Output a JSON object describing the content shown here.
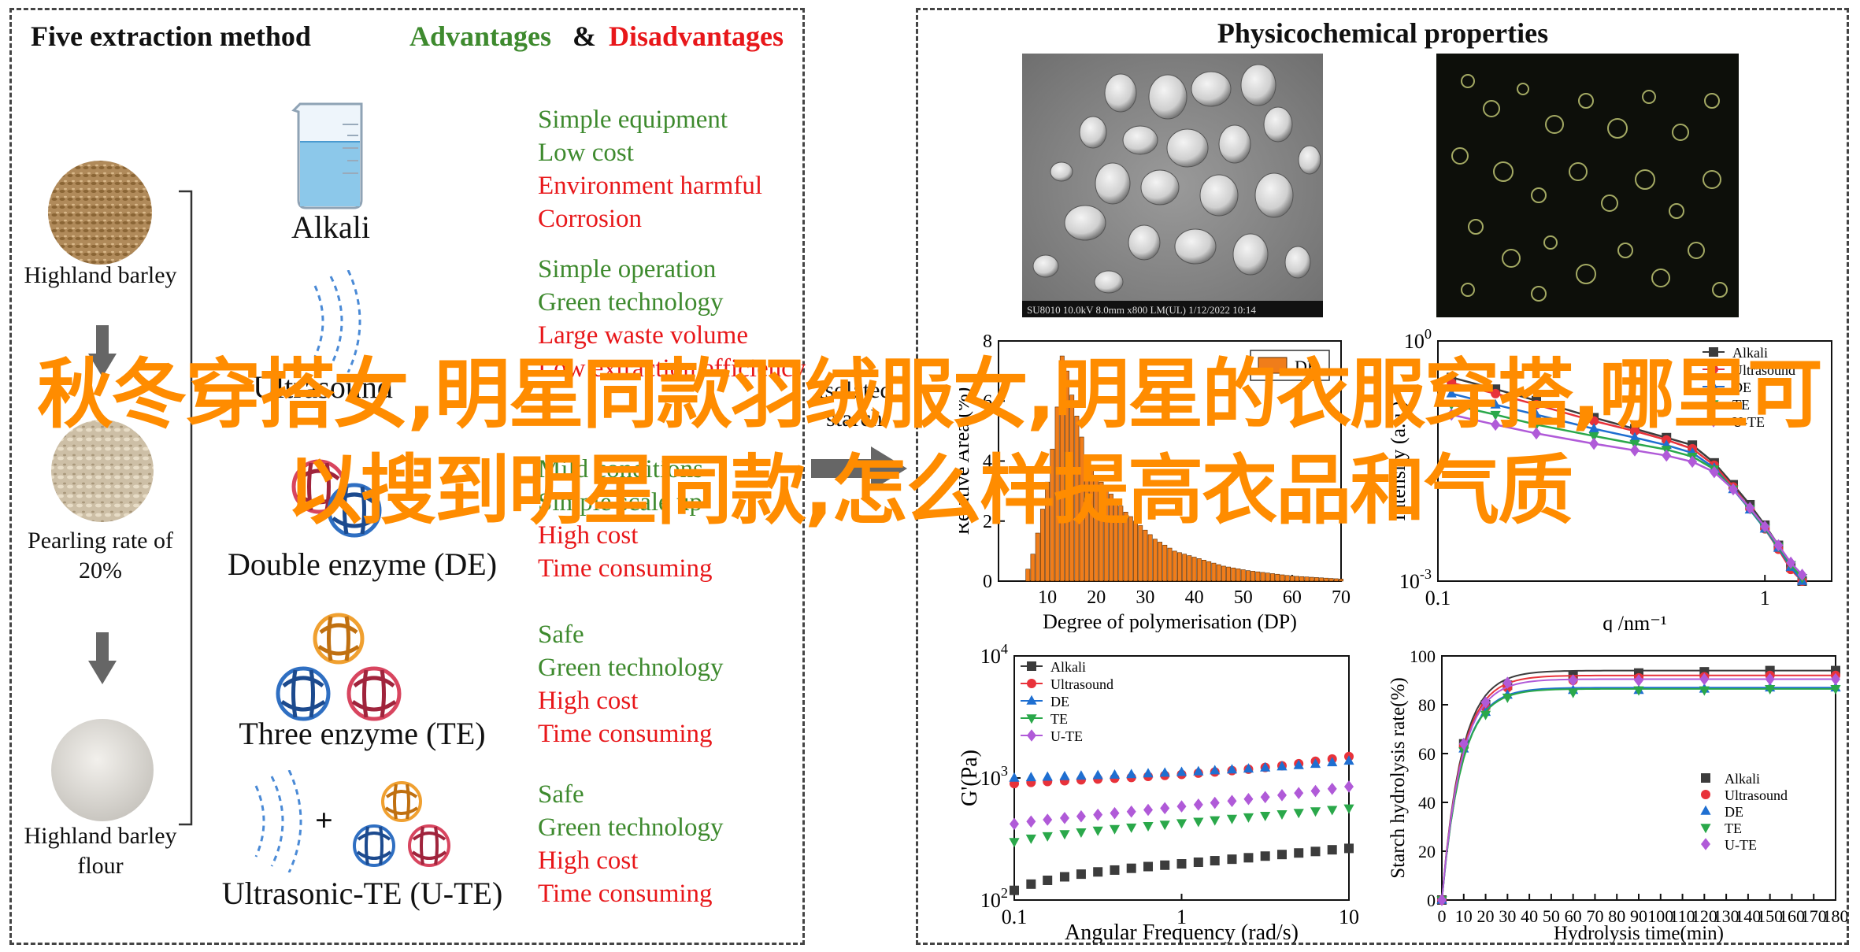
{
  "left": {
    "title": "Five extraction method",
    "advantages_label": "Advantages",
    "amp": "&",
    "disadvantages_label": "Disadvantages",
    "colors": {
      "advantage": "#3e8a2e",
      "disadvantage": "#e8171a"
    },
    "samples": [
      "Highland barley",
      "Pearling rate of 20%",
      "Highland barley flour"
    ],
    "methods": [
      {
        "name": "Alkali",
        "advantages": [
          "Simple equipment",
          "Low cost"
        ],
        "disadvantages": [
          "Environment harmful",
          "Corrosion"
        ]
      },
      {
        "name": "Ultrasound",
        "advantages": [
          "Simple operation",
          "Green technology"
        ],
        "disadvantages": [
          "Large waste volume",
          "Low extraction efficiency"
        ]
      },
      {
        "name": "Double enzyme (DE)",
        "advantages": [
          "Mild conditions",
          "Simple scale up"
        ],
        "disadvantages": [
          "High cost",
          "Time consuming"
        ]
      },
      {
        "name": "Three enzyme (TE)",
        "advantages": [
          "Safe",
          "Green technology"
        ],
        "disadvantages": [
          "High cost",
          "Time consuming"
        ]
      },
      {
        "name": "Ultrasonic-TE (U-TE)",
        "advantages": [
          "Safe",
          "Green technology"
        ],
        "disadvantages": [
          "High cost",
          "Time consuming"
        ]
      }
    ],
    "plus": "+",
    "isolated_label": "Isolated starch"
  },
  "right": {
    "title": "Physicochemical properties",
    "sem_caption": "SU8010 10.0kV 8.0mm x800 LM(UL) 1/12/2022 10:14"
  },
  "overlay": "秋冬穿搭女,明星同款羽绒服女,明星的衣服穿搭,哪里可以搜到明星同款,怎么样提高衣品和气质",
  "chart_data": [
    {
      "type": "bar",
      "legend": [
        "DE"
      ],
      "legend_position": "top-right",
      "color": "#f07d1a",
      "xlabel": "Degree of polymerisation (DP)",
      "ylabel": "Relative Area (%)",
      "xticks": [
        10,
        20,
        30,
        40,
        50,
        60,
        70
      ],
      "yticks": [
        0,
        2,
        4,
        6,
        8
      ],
      "xlim": [
        0,
        70
      ],
      "ylim": [
        0,
        8
      ],
      "x": [
        6,
        7,
        8,
        9,
        10,
        11,
        12,
        13,
        14,
        15,
        16,
        17,
        18,
        19,
        20,
        21,
        22,
        23,
        24,
        25,
        26,
        27,
        28,
        29,
        30,
        31,
        32,
        33,
        34,
        35,
        36,
        37,
        38,
        39,
        40,
        41,
        42,
        43,
        44,
        45,
        46,
        47,
        48,
        49,
        50,
        51,
        52,
        53,
        54,
        55,
        56,
        57,
        58,
        59,
        60,
        61,
        62,
        63,
        64,
        65,
        66,
        67,
        68,
        69,
        70
      ],
      "values": [
        0.4,
        0.9,
        1.6,
        2.4,
        3.3,
        4.4,
        5.8,
        7.5,
        7.0,
        6.2,
        5.5,
        4.8,
        4.2,
        3.8,
        3.5,
        3.3,
        3.1,
        2.9,
        2.7,
        2.5,
        2.3,
        2.15,
        2.0,
        1.85,
        1.7,
        1.55,
        1.4,
        1.3,
        1.2,
        1.1,
        1.0,
        0.95,
        0.9,
        0.85,
        0.8,
        0.75,
        0.7,
        0.65,
        0.6,
        0.55,
        0.5,
        0.47,
        0.44,
        0.41,
        0.38,
        0.35,
        0.33,
        0.31,
        0.29,
        0.27,
        0.25,
        0.23,
        0.21,
        0.19,
        0.17,
        0.16,
        0.15,
        0.14,
        0.13,
        0.12,
        0.11,
        0.1,
        0.09,
        0.08,
        0.07
      ]
    },
    {
      "type": "line",
      "xscale": "log",
      "yscale": "log",
      "xlabel": "q /nm⁻¹",
      "ylabel": "Intensity (a.u.)",
      "xlim": [
        0.1,
        1.6
      ],
      "ylim": [
        0.001,
        1
      ],
      "xticks": [
        0.1,
        1
      ],
      "yticks": [
        0.001,
        1
      ],
      "legend_position": "top-right",
      "series": [
        {
          "name": "Alkali",
          "color": "#3c3c3c",
          "marker": "square",
          "x": [
            0.11,
            0.15,
            0.2,
            0.3,
            0.4,
            0.5,
            0.6,
            0.7,
            0.8,
            0.9,
            1.0,
            1.1,
            1.2,
            1.3
          ],
          "y": [
            0.35,
            0.25,
            0.18,
            0.11,
            0.08,
            0.062,
            0.05,
            0.03,
            0.016,
            0.009,
            0.005,
            0.0028,
            0.0015,
            0.001
          ]
        },
        {
          "name": "Ultrasound",
          "color": "#e8323a",
          "marker": "circle",
          "x": [
            0.11,
            0.15,
            0.2,
            0.3,
            0.4,
            0.5,
            0.6,
            0.7,
            0.8,
            0.9,
            1.0,
            1.1,
            1.2,
            1.3
          ],
          "y": [
            0.3,
            0.22,
            0.16,
            0.1,
            0.075,
            0.058,
            0.045,
            0.028,
            0.015,
            0.008,
            0.0045,
            0.0025,
            0.0014,
            0.001
          ]
        },
        {
          "name": "DE",
          "color": "#1f6fd1",
          "marker": "triangle-up",
          "x": [
            0.11,
            0.15,
            0.2,
            0.3,
            0.4,
            0.5,
            0.6,
            0.7,
            0.8,
            0.9,
            1.0,
            1.1,
            1.2,
            1.3
          ],
          "y": [
            0.22,
            0.16,
            0.12,
            0.08,
            0.062,
            0.05,
            0.04,
            0.026,
            0.014,
            0.0078,
            0.0045,
            0.0026,
            0.0015,
            0.001
          ]
        },
        {
          "name": "TE",
          "color": "#2aa84a",
          "marker": "triangle-down",
          "x": [
            0.11,
            0.15,
            0.2,
            0.3,
            0.4,
            0.5,
            0.6,
            0.7,
            0.8,
            0.9,
            1.0,
            1.1,
            1.2,
            1.3
          ],
          "y": [
            0.16,
            0.12,
            0.09,
            0.065,
            0.052,
            0.044,
            0.036,
            0.025,
            0.014,
            0.008,
            0.0046,
            0.0027,
            0.0016,
            0.0011
          ]
        },
        {
          "name": "U-TE",
          "color": "#b05ad8",
          "marker": "diamond",
          "x": [
            0.11,
            0.15,
            0.2,
            0.3,
            0.4,
            0.5,
            0.6,
            0.7,
            0.8,
            0.9,
            1.0,
            1.1,
            1.2,
            1.3
          ],
          "y": [
            0.12,
            0.09,
            0.07,
            0.052,
            0.043,
            0.037,
            0.031,
            0.023,
            0.014,
            0.0082,
            0.0048,
            0.0028,
            0.0017,
            0.0012
          ]
        }
      ]
    },
    {
      "type": "scatter",
      "xscale": "log",
      "yscale": "log",
      "xlabel": "Angular Frequency (rad/s)",
      "ylabel": "G'(Pa)",
      "xlim": [
        0.1,
        10
      ],
      "ylim": [
        100,
        10000
      ],
      "xticks": [
        0.1,
        1,
        10
      ],
      "yticks": [
        100,
        1000,
        10000
      ],
      "legend_position": "top-left",
      "x": [
        0.1,
        0.126,
        0.158,
        0.2,
        0.251,
        0.316,
        0.398,
        0.501,
        0.631,
        0.794,
        1.0,
        1.26,
        1.58,
        2.0,
        2.51,
        3.16,
        3.98,
        5.01,
        6.31,
        7.94,
        10.0
      ],
      "series": [
        {
          "name": "Alkali",
          "color": "#3c3c3c",
          "marker": "square",
          "y": [
            120,
            135,
            145,
            155,
            163,
            170,
            176,
            182,
            188,
            193,
            198,
            204,
            210,
            216,
            222,
            229,
            236,
            243,
            250,
            258,
            265
          ]
        },
        {
          "name": "Ultrasound",
          "color": "#e8323a",
          "marker": "circle",
          "y": [
            900,
            920,
            935,
            950,
            965,
            980,
            995,
            1010,
            1030,
            1050,
            1070,
            1095,
            1120,
            1150,
            1180,
            1220,
            1260,
            1310,
            1370,
            1430,
            1500
          ]
        },
        {
          "name": "DE",
          "color": "#1f6fd1",
          "marker": "triangle-up",
          "y": [
            1000,
            1010,
            1020,
            1030,
            1040,
            1050,
            1060,
            1070,
            1085,
            1100,
            1115,
            1130,
            1150,
            1170,
            1190,
            1215,
            1240,
            1270,
            1300,
            1340,
            1380
          ]
        },
        {
          "name": "TE",
          "color": "#2aa84a",
          "marker": "triangle-down",
          "y": [
            300,
            320,
            335,
            348,
            360,
            372,
            383,
            394,
            405,
            416,
            428,
            440,
            452,
            465,
            478,
            492,
            506,
            520,
            535,
            550,
            565
          ]
        },
        {
          "name": "U-TE",
          "color": "#b05ad8",
          "marker": "diamond",
          "y": [
            420,
            440,
            455,
            470,
            485,
            500,
            515,
            530,
            548,
            566,
            585,
            605,
            626,
            648,
            672,
            697,
            723,
            752,
            782,
            815,
            850
          ]
        }
      ]
    },
    {
      "type": "scatter",
      "xlabel": "Hydrolysis time(min)",
      "ylabel": "Starch hydrolysis rate(%)",
      "xlim": [
        0,
        180
      ],
      "ylim": [
        0,
        100
      ],
      "xticks": [
        0,
        10,
        20,
        30,
        40,
        50,
        60,
        70,
        80,
        90,
        100,
        110,
        120,
        130,
        140,
        150,
        160,
        170,
        180
      ],
      "yticks": [
        0,
        20,
        40,
        60,
        80,
        100
      ],
      "legend_position": "bottom-right",
      "x": [
        0,
        10,
        20,
        30,
        60,
        90,
        120,
        150,
        180
      ],
      "series": [
        {
          "name": "Alkali",
          "color": "#3c3c3c",
          "marker": "square",
          "y": [
            0,
            64,
            80,
            88,
            92,
            93,
            93.5,
            94,
            94
          ]
        },
        {
          "name": "Ultrasound",
          "color": "#e8323a",
          "marker": "circle",
          "y": [
            0,
            63,
            79,
            87,
            90,
            91,
            91.5,
            92,
            92
          ]
        },
        {
          "name": "DE",
          "color": "#1f6fd1",
          "marker": "triangle-up",
          "y": [
            0,
            62,
            77,
            84,
            86,
            86,
            86.5,
            87,
            87
          ]
        },
        {
          "name": "TE",
          "color": "#2aa84a",
          "marker": "triangle-down",
          "y": [
            0,
            61,
            76,
            83,
            85,
            86,
            86,
            86.5,
            86.5
          ]
        },
        {
          "name": "U-TE",
          "color": "#b05ad8",
          "marker": "diamond",
          "y": [
            0,
            64,
            81,
            89,
            90,
            90,
            90.5,
            90.5,
            90.5
          ]
        }
      ]
    }
  ]
}
